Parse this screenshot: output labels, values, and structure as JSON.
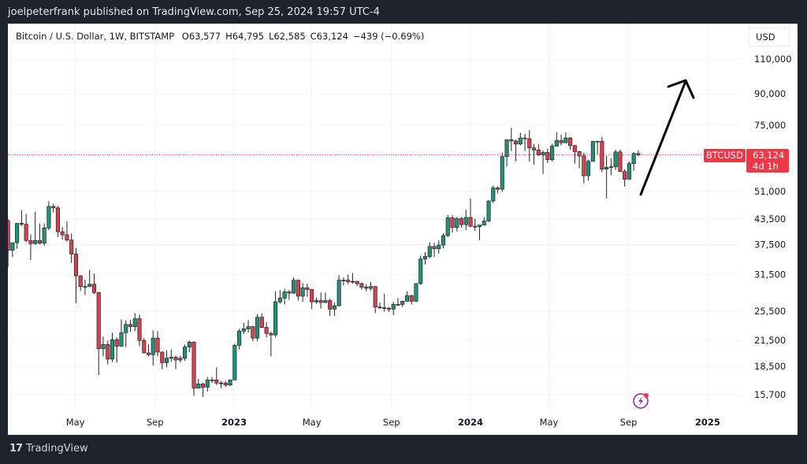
{
  "header": {
    "published": "joelpeterfrank published on TradingView.com, Sep 25, 2024 19:57 UTC-4"
  },
  "legend": {
    "symbol": "Bitcoin / U.S. Dollar, 1W, BITSTAMP",
    "open": "O63,577",
    "high": "H64,795",
    "low": "L62,585",
    "close": "C63,124",
    "change": "−439 (−0.69%)"
  },
  "price_axis": {
    "currency": "USD"
  },
  "last_price": {
    "ticker": "BTCUSD",
    "price": "63,124",
    "countdown": "4d 1h",
    "value": 63124
  },
  "footer": {
    "brand": "TradingView"
  },
  "colors": {
    "up": "#22917a",
    "down": "#d9414f",
    "price_tag": "#f23645",
    "arrow": "#000000",
    "icon": "#9c27b0"
  },
  "icons": [
    "tradingview-logo-icon",
    "lightning-badge-icon",
    "up-arrow-drawing"
  ],
  "chart_data": {
    "type": "candlestick",
    "scale": "log",
    "grid": true,
    "ylim": [
      15700,
      110000
    ],
    "y_ticks": [
      110000,
      90000,
      75000,
      51000,
      43500,
      37500,
      31500,
      25500,
      21500,
      18500,
      15700
    ],
    "y_tick_labels": [
      "110,000",
      "90,000",
      "75,000",
      "51,000",
      "43,500",
      "37,500",
      "31,500",
      "25,500",
      "21,500",
      "18,500",
      "15,700"
    ],
    "x_ticks": [
      {
        "label": "May",
        "date": "2022-05-01",
        "bold": false
      },
      {
        "label": "Sep",
        "date": "2022-09-01",
        "bold": false
      },
      {
        "label": "2023",
        "date": "2023-01-01",
        "bold": true
      },
      {
        "label": "May",
        "date": "2023-05-01",
        "bold": false
      },
      {
        "label": "Sep",
        "date": "2023-09-01",
        "bold": false
      },
      {
        "label": "2024",
        "date": "2024-01-01",
        "bold": true
      },
      {
        "label": "May",
        "date": "2024-05-01",
        "bold": false
      },
      {
        "label": "Sep",
        "date": "2024-09-01",
        "bold": false
      },
      {
        "label": "2025",
        "date": "2025-01-01",
        "bold": true
      }
    ],
    "first_week": "2022-01-17",
    "interval": "1W",
    "ohlc": [
      [
        43100,
        43500,
        32900,
        36300
      ],
      [
        36300,
        38000,
        34900,
        37900
      ],
      [
        37900,
        42500,
        36600,
        42400
      ],
      [
        42400,
        45800,
        41700,
        42200
      ],
      [
        42200,
        44800,
        38000,
        38400
      ],
      [
        38400,
        39800,
        34300,
        37700
      ],
      [
        37700,
        45400,
        37500,
        38400
      ],
      [
        38400,
        42400,
        37600,
        37800
      ],
      [
        37800,
        42400,
        37200,
        41300
      ],
      [
        41300,
        48200,
        40800,
        46800
      ],
      [
        46800,
        47500,
        45200,
        46400
      ],
      [
        46400,
        46900,
        39200,
        40400
      ],
      [
        40400,
        41500,
        38600,
        39700
      ],
      [
        39700,
        42900,
        38200,
        38500
      ],
      [
        38500,
        40000,
        33700,
        35500
      ],
      [
        35500,
        36800,
        26700,
        31300
      ],
      [
        31300,
        31400,
        28700,
        29400
      ],
      [
        29400,
        30600,
        28000,
        29400
      ],
      [
        29400,
        32400,
        29300,
        29800
      ],
      [
        29800,
        31700,
        28100,
        28400
      ],
      [
        28400,
        28500,
        17600,
        20500
      ],
      [
        20500,
        22000,
        19600,
        21000
      ],
      [
        21000,
        21500,
        18700,
        19300
      ],
      [
        19300,
        22500,
        19000,
        21600
      ],
      [
        21600,
        21900,
        18900,
        20800
      ],
      [
        20800,
        24300,
        20700,
        22500
      ],
      [
        22500,
        24200,
        20700,
        23600
      ],
      [
        23600,
        24200,
        22600,
        23300
      ],
      [
        23300,
        25200,
        22700,
        24400
      ],
      [
        24400,
        25000,
        20800,
        21500
      ],
      [
        21500,
        21800,
        20000,
        20000
      ],
      [
        20000,
        21000,
        19600,
        19800
      ],
      [
        19800,
        22800,
        18600,
        21800
      ],
      [
        21800,
        22700,
        19600,
        20100
      ],
      [
        20100,
        20200,
        18200,
        18900
      ],
      [
        18900,
        20300,
        18400,
        19400
      ],
      [
        19400,
        20400,
        19000,
        19500
      ],
      [
        19500,
        19700,
        18200,
        19200
      ],
      [
        19200,
        19700,
        18900,
        19400
      ],
      [
        19400,
        21000,
        19100,
        20700
      ],
      [
        20700,
        21500,
        20100,
        21300
      ],
      [
        21300,
        21400,
        15600,
        16300
      ],
      [
        16300,
        17200,
        16300,
        16700
      ],
      [
        16700,
        16800,
        15500,
        16400
      ],
      [
        16400,
        17400,
        16000,
        17100
      ],
      [
        17100,
        17400,
        16800,
        17100
      ],
      [
        17100,
        18400,
        16600,
        16800
      ],
      [
        16800,
        17000,
        16300,
        16800
      ],
      [
        16800,
        17000,
        16400,
        16600
      ],
      [
        16600,
        17100,
        16500,
        17100
      ],
      [
        17100,
        21100,
        17100,
        20900
      ],
      [
        20900,
        23000,
        20400,
        22700
      ],
      [
        22700,
        23800,
        22300,
        23000
      ],
      [
        23000,
        24200,
        22500,
        23300
      ],
      [
        23300,
        23400,
        21400,
        21800
      ],
      [
        21800,
        25000,
        21400,
        24600
      ],
      [
        24600,
        25200,
        23100,
        23200
      ],
      [
        23200,
        23900,
        21900,
        22400
      ],
      [
        22400,
        22600,
        19600,
        22200
      ],
      [
        22200,
        28600,
        21900,
        26900
      ],
      [
        26900,
        28800,
        26600,
        27500
      ],
      [
        27500,
        29000,
        26500,
        28500
      ],
      [
        28500,
        28800,
        27200,
        28300
      ],
      [
        28300,
        31000,
        28200,
        30500
      ],
      [
        30500,
        30600,
        27100,
        27800
      ],
      [
        27800,
        30000,
        26900,
        29200
      ],
      [
        29200,
        29900,
        27700,
        28900
      ],
      [
        28900,
        29000,
        25800,
        26900
      ],
      [
        26900,
        27600,
        26600,
        27100
      ],
      [
        27100,
        28400,
        25900,
        26800
      ],
      [
        26800,
        28400,
        26700,
        27100
      ],
      [
        27100,
        27400,
        24800,
        25800
      ],
      [
        25800,
        26800,
        24800,
        26300
      ],
      [
        26300,
        31400,
        26200,
        30500
      ],
      [
        30500,
        31000,
        29600,
        30500
      ],
      [
        30500,
        31500,
        29800,
        30200
      ],
      [
        30200,
        31800,
        29900,
        30300
      ],
      [
        30300,
        30400,
        29500,
        29900
      ],
      [
        29900,
        30100,
        28900,
        29300
      ],
      [
        29300,
        29800,
        28600,
        29100
      ],
      [
        29100,
        30200,
        28700,
        29400
      ],
      [
        29400,
        29500,
        25200,
        26100
      ],
      [
        26100,
        26800,
        25800,
        26000
      ],
      [
        26000,
        28200,
        25400,
        25900
      ],
      [
        25900,
        26100,
        25400,
        25800
      ],
      [
        25800,
        26900,
        24900,
        26500
      ],
      [
        26500,
        27500,
        26300,
        26500
      ],
      [
        26500,
        27100,
        26100,
        27000
      ],
      [
        27000,
        28600,
        26900,
        27900
      ],
      [
        27900,
        28000,
        26500,
        27000
      ],
      [
        27000,
        30000,
        26900,
        29900
      ],
      [
        29900,
        35200,
        29700,
        34500
      ],
      [
        34500,
        35900,
        33400,
        35000
      ],
      [
        35000,
        38000,
        34600,
        37100
      ],
      [
        37100,
        37900,
        34900,
        36600
      ],
      [
        36600,
        38400,
        35600,
        37400
      ],
      [
        37400,
        40000,
        36700,
        39500
      ],
      [
        39500,
        44500,
        39200,
        43800
      ],
      [
        43800,
        44400,
        40200,
        41400
      ],
      [
        41400,
        44000,
        40500,
        43600
      ],
      [
        43600,
        44000,
        41400,
        42100
      ],
      [
        42100,
        45900,
        40800,
        43900
      ],
      [
        43900,
        49000,
        41500,
        41700
      ],
      [
        41700,
        43600,
        40600,
        41600
      ],
      [
        41600,
        42000,
        38500,
        42000
      ],
      [
        42000,
        43900,
        41900,
        43000
      ],
      [
        43000,
        48500,
        42700,
        48300
      ],
      [
        48300,
        52800,
        47700,
        52100
      ],
      [
        52100,
        52600,
        50500,
        51700
      ],
      [
        51700,
        64000,
        50900,
        62500
      ],
      [
        62500,
        69000,
        59000,
        68900
      ],
      [
        68900,
        73800,
        64500,
        68400
      ],
      [
        68400,
        68900,
        60800,
        67200
      ],
      [
        67200,
        71700,
        66700,
        69600
      ],
      [
        69600,
        71300,
        64500,
        69300
      ],
      [
        69300,
        72800,
        60700,
        65700
      ],
      [
        65700,
        67300,
        59600,
        64900
      ],
      [
        64900,
        67200,
        62800,
        63100
      ],
      [
        63100,
        64700,
        56500,
        64000
      ],
      [
        64000,
        65500,
        60200,
        61400
      ],
      [
        61400,
        67400,
        60700,
        66400
      ],
      [
        66400,
        71900,
        66200,
        68600
      ],
      [
        68600,
        71000,
        66700,
        67700
      ],
      [
        67700,
        71900,
        67600,
        69600
      ],
      [
        69600,
        70000,
        65000,
        66600
      ],
      [
        66600,
        66900,
        60000,
        64300
      ],
      [
        64300,
        64600,
        58400,
        62700
      ],
      [
        62700,
        63800,
        53500,
        55900
      ],
      [
        55900,
        61400,
        54300,
        60800
      ],
      [
        60800,
        68400,
        60700,
        68200
      ],
      [
        68200,
        68400,
        63400,
        68300
      ],
      [
        68300,
        70000,
        57100,
        58100
      ],
      [
        58100,
        62700,
        49000,
        58700
      ],
      [
        58700,
        61800,
        56100,
        58900
      ],
      [
        58900,
        65000,
        57800,
        64200
      ],
      [
        64200,
        65100,
        57200,
        57300
      ],
      [
        57300,
        58100,
        52500,
        54800
      ],
      [
        54800,
        60700,
        54600,
        60000
      ],
      [
        60000,
        64100,
        57500,
        63600
      ],
      [
        63577,
        64795,
        62585,
        63124
      ]
    ]
  }
}
